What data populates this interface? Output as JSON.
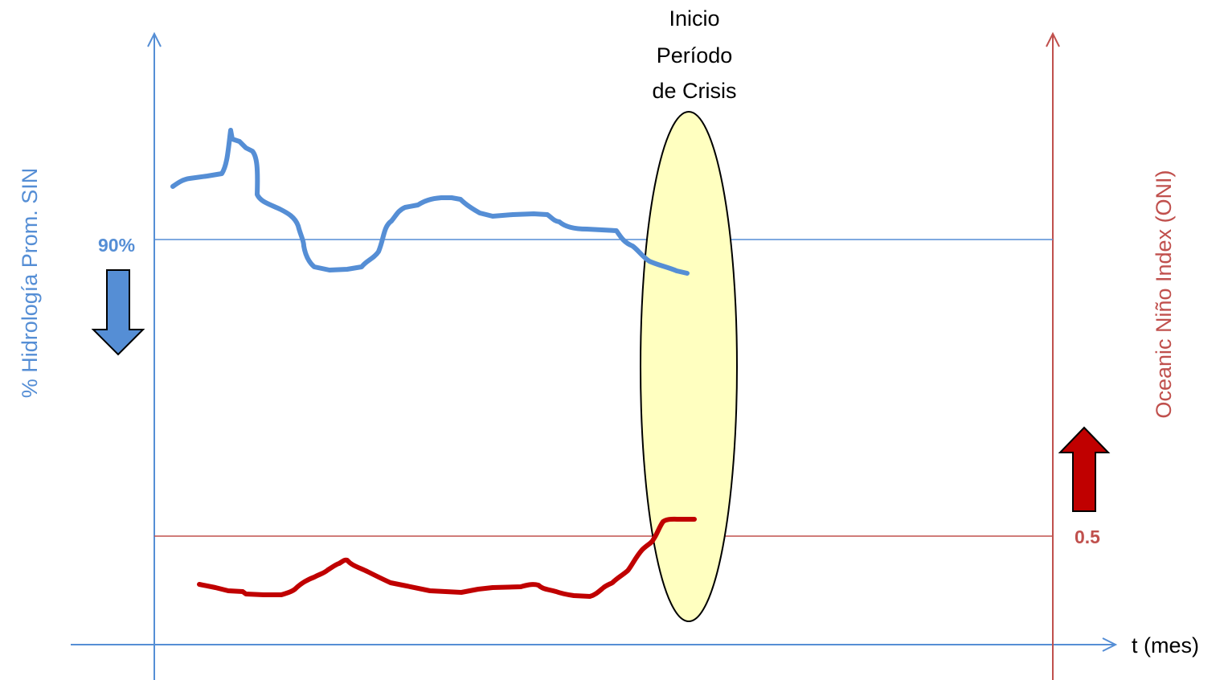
{
  "colors": {
    "hydrology": "#558ed5",
    "oni": "#c00000",
    "right_axis": "#c0504d",
    "crisis_fill": "#ffffc0",
    "crisis_stroke": "#000000"
  },
  "left_axis": {
    "label": "% Hidrología Prom. SIN",
    "threshold_label": "90%",
    "arrow": "arrow-down"
  },
  "right_axis": {
    "label": "Oceanic Niño Index (ONI)",
    "threshold_label": "0.5",
    "arrow": "arrow-up"
  },
  "x_axis": {
    "label": "t (mes)"
  },
  "crisis": {
    "line1": "Inicio",
    "line2": "Período",
    "line3": "de Crisis"
  }
}
